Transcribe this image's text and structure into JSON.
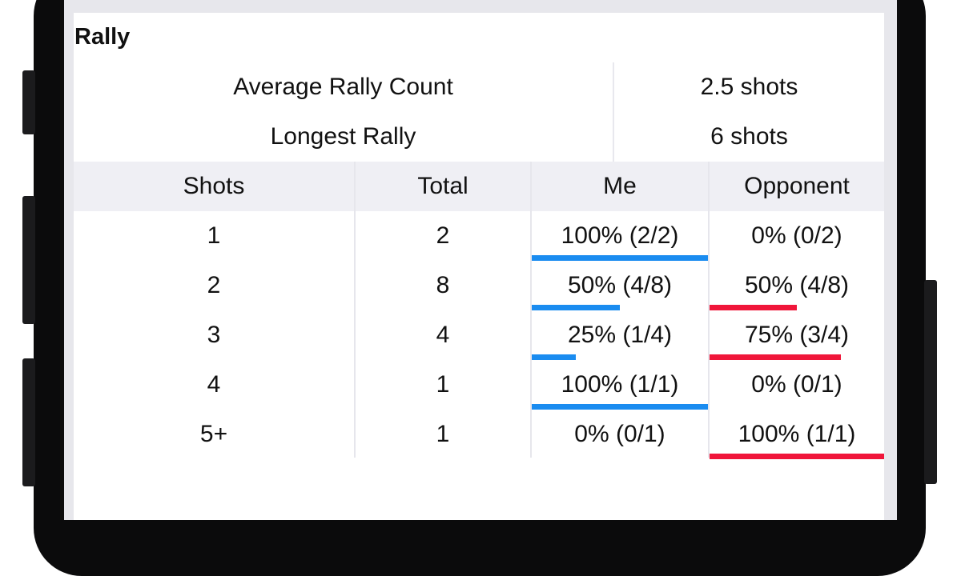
{
  "section": {
    "title": "Rally"
  },
  "summary": [
    {
      "label": "Average Rally Count",
      "value": "2.5 shots"
    },
    {
      "label": "Longest Rally",
      "value": "6 shots"
    }
  ],
  "table": {
    "headers": [
      "Shots",
      "Total",
      "Me",
      "Opponent"
    ],
    "rows": [
      {
        "shots": "1",
        "total": "2",
        "me": "100% (2/2)",
        "opponent": "0% (0/2)",
        "me_fraction": 1.0,
        "opponent_fraction": 0.0
      },
      {
        "shots": "2",
        "total": "8",
        "me": "50% (4/8)",
        "opponent": "50% (4/8)",
        "me_fraction": 0.5,
        "opponent_fraction": 0.5
      },
      {
        "shots": "3",
        "total": "4",
        "me": "25% (1/4)",
        "opponent": "75% (3/4)",
        "me_fraction": 0.25,
        "opponent_fraction": 0.75
      },
      {
        "shots": "4",
        "total": "1",
        "me": "100% (1/1)",
        "opponent": "0% (0/1)",
        "me_fraction": 1.0,
        "opponent_fraction": 0.0
      },
      {
        "shots": "5+",
        "total": "1",
        "me": "0% (0/1)",
        "opponent": "100% (1/1)",
        "me_fraction": 0.0,
        "opponent_fraction": 1.0
      }
    ]
  },
  "colors": {
    "me_bar": "#1a8cf0",
    "opponent_bar": "#f0163a",
    "header_bg": "#efeff4"
  }
}
